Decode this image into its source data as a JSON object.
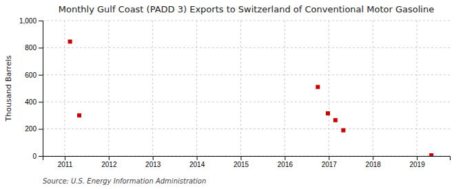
{
  "chart_data": {
    "type": "scatter",
    "title": "Monthly Gulf Coast (PADD 3) Exports to Switzerland of Conventional Motor Gasoline",
    "ylabel": "Thousand Barrels",
    "annotations": [
      "Source: U.S. Energy Information Administration"
    ],
    "x": [
      2011.12,
      2011.33,
      2016.75,
      2016.98,
      2017.15,
      2017.33,
      2019.33
    ],
    "values": [
      845,
      300,
      510,
      315,
      265,
      190,
      5
    ],
    "color": "#cc0000",
    "marker": "square",
    "xlim": [
      2010.5,
      2019.75
    ],
    "xticks": [
      2011,
      2012,
      2013,
      2014,
      2015,
      2016,
      2017,
      2018,
      2019
    ],
    "ylim": [
      0,
      1000
    ],
    "yticks": [
      0,
      200,
      400,
      600,
      800,
      {
        "value": 1000,
        "label": "1,000"
      }
    ],
    "grid": true
  }
}
